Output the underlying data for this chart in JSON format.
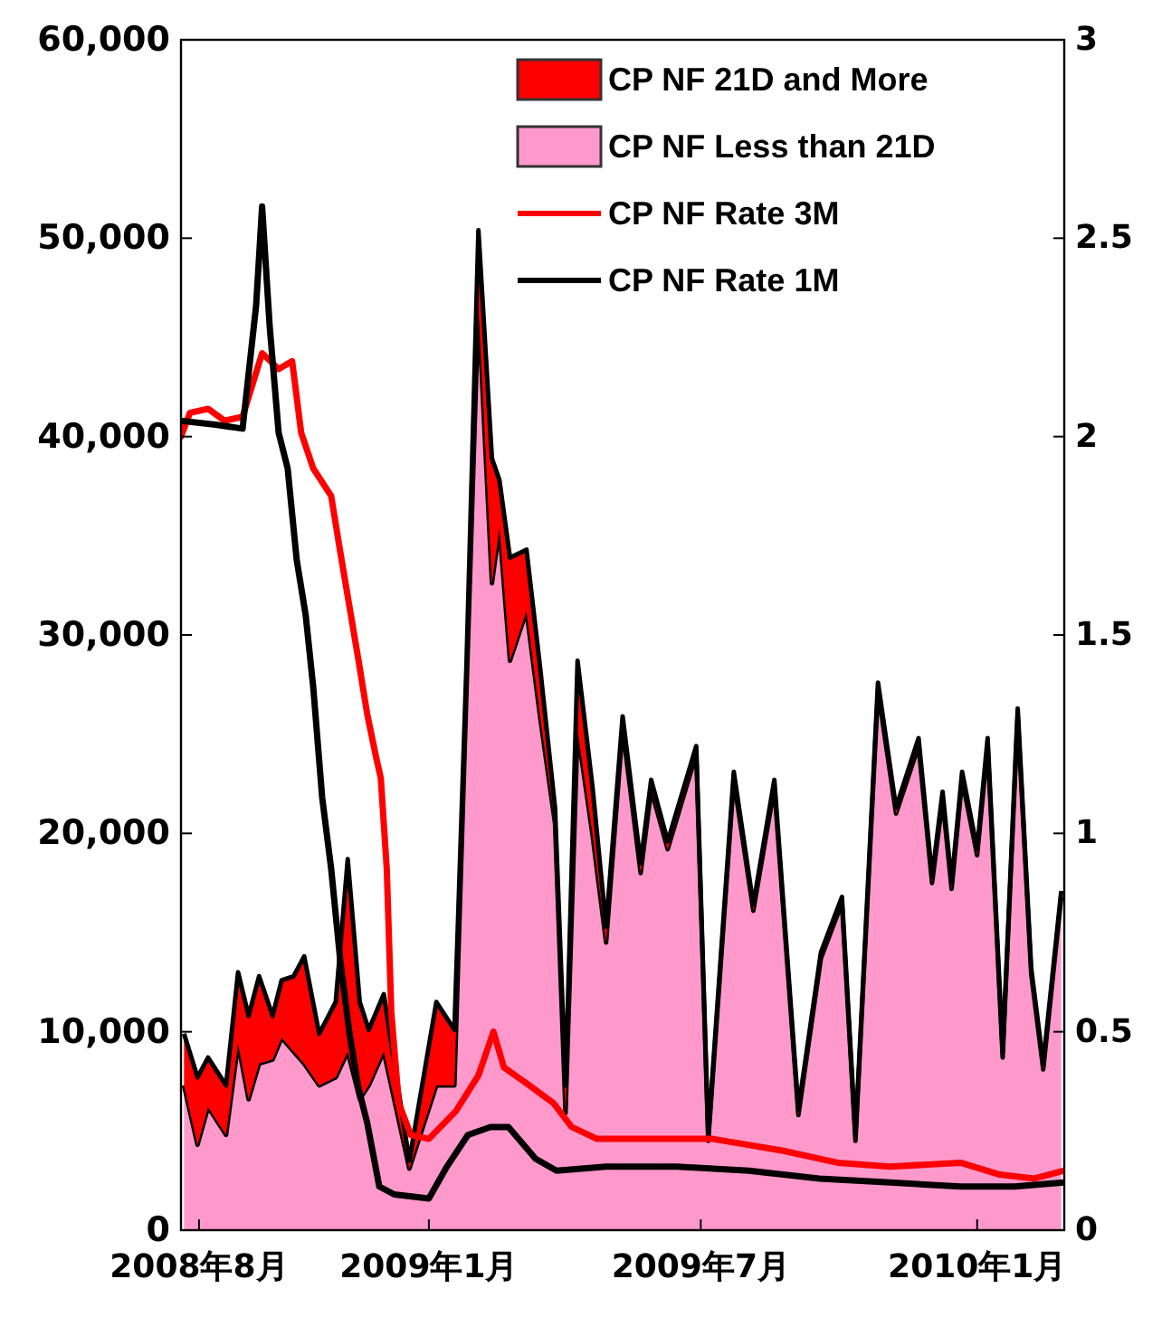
{
  "chart_data": {
    "type": "area",
    "stacked": true,
    "legend": "top right",
    "grid": false,
    "x": [
      "2008-07-22",
      "2008-07-31",
      "2008-08-07",
      "2008-08-19",
      "2008-08-27",
      "2008-09-03",
      "2008-09-10",
      "2008-09-19",
      "2008-09-25",
      "2008-10-03",
      "2008-10-10",
      "2008-10-20",
      "2008-10-31",
      "2008-11-08",
      "2008-11-16",
      "2008-11-22",
      "2008-12-02",
      "2008-12-19",
      "2009-01-06",
      "2009-01-18",
      "2009-01-26",
      "2009-02-03",
      "2009-02-12",
      "2009-02-17",
      "2009-02-24",
      "2009-03-07",
      "2009-03-16",
      "2009-03-26",
      "2009-04-02",
      "2009-04-10",
      "2009-04-20",
      "2009-04-29",
      "2009-05-10",
      "2009-05-22",
      "2009-05-29",
      "2009-06-09",
      "2009-06-28",
      "2009-07-06",
      "2009-07-23",
      "2009-08-05",
      "2009-08-19",
      "2009-09-04",
      "2009-09-19",
      "2009-10-03",
      "2009-10-12",
      "2009-10-27",
      "2009-11-08",
      "2009-11-23",
      "2009-12-02",
      "2009-12-09",
      "2009-12-15",
      "2009-12-22",
      "2010-01-01",
      "2010-01-08",
      "2010-01-18",
      "2010-01-28",
      "2010-02-06",
      "2010-02-14",
      "2010-02-26"
    ],
    "xlim": [
      "2008-07-20",
      "2010-02-28"
    ],
    "xticks": [
      {
        "value": "2008-08-01",
        "label": "2008年8月"
      },
      {
        "value": "2009-01-01",
        "label": "2009年1月"
      },
      {
        "value": "2009-07-01",
        "label": "2009年7月"
      },
      {
        "value": "2010-01-01",
        "label": "2010年1月"
      }
    ],
    "ylim": [
      0,
      60000
    ],
    "yticks": [
      0,
      {
        "value": 10000,
        "label": "10,000"
      },
      {
        "value": 20000,
        "label": "20,000"
      },
      {
        "value": 30000,
        "label": "30,000"
      },
      {
        "value": 40000,
        "label": "40,000"
      },
      {
        "value": 50000,
        "label": "50,000"
      },
      {
        "value": 60000,
        "label": "60,000"
      }
    ],
    "y2lim": [
      0,
      3
    ],
    "y2ticks": [
      0,
      0.5,
      1,
      1.5,
      2,
      2.5,
      3
    ],
    "series": [
      {
        "name": "CP NF Less than 21D",
        "color": "#ff99cc",
        "values": [
          7300,
          4300,
          6200,
          4800,
          9400,
          6600,
          8400,
          8600,
          9700,
          9000,
          8400,
          7300,
          7700,
          9000,
          6600,
          7300,
          9000,
          3100,
          7300,
          7300,
          27000,
          46600,
          32600,
          35400,
          28700,
          31200,
          25900,
          20500,
          5900,
          25200,
          19900,
          14500,
          25300,
          18000,
          22200,
          19200,
          24000,
          4500,
          22700,
          16100,
          22300,
          5800,
          13700,
          16500,
          4500,
          27200,
          21000,
          24400,
          17500,
          21700,
          17200,
          22700,
          18900,
          24400,
          8700,
          25900,
          12900,
          8100,
          16800
        ]
      },
      {
        "name": "CP NF 21D and More",
        "color": "#ff0000",
        "values": [
          2600,
          3400,
          2500,
          2500,
          3600,
          4200,
          4400,
          2200,
          2900,
          3800,
          5400,
          2600,
          3800,
          9700,
          4900,
          2800,
          2900,
          400,
          4200,
          2800,
          1400,
          3800,
          6300,
          2400,
          5200,
          3100,
          2500,
          800,
          1400,
          3500,
          2400,
          800,
          600,
          500,
          500,
          400,
          400,
          300,
          400,
          300,
          400,
          300,
          300,
          300,
          300,
          400,
          300,
          400,
          300,
          400,
          300,
          400,
          300,
          400,
          300,
          400,
          300,
          300,
          300
        ]
      },
      {
        "name": "CP NF Rate 3M",
        "type": "line",
        "axis": "y2",
        "color": "#ff0000",
        "x": [
          "2008-07-20",
          "2008-07-26",
          "2008-08-07",
          "2008-08-18",
          "2008-08-30",
          "2008-09-12",
          "2008-09-23",
          "2008-10-02",
          "2008-10-08",
          "2008-10-16",
          "2008-10-28",
          "2008-11-03",
          "2008-11-15",
          "2008-11-21",
          "2008-11-27",
          "2008-11-30",
          "2008-12-04",
          "2008-12-07",
          "2008-12-12",
          "2008-12-20",
          "2009-01-01",
          "2009-01-19",
          "2009-02-03",
          "2009-02-13",
          "2009-02-20",
          "2009-03-07",
          "2009-03-25",
          "2009-04-06",
          "2009-04-23",
          "2009-05-23",
          "2009-07-09",
          "2009-08-25",
          "2009-09-30",
          "2009-11-04",
          "2009-12-21",
          "2010-01-16",
          "2010-02-08",
          "2010-02-28"
        ],
        "values": [
          2.0,
          2.06,
          2.07,
          2.04,
          2.05,
          2.21,
          2.17,
          2.19,
          2.01,
          1.92,
          1.85,
          1.71,
          1.44,
          1.3,
          1.19,
          1.14,
          0.91,
          0.55,
          0.32,
          0.24,
          0.23,
          0.3,
          0.39,
          0.5,
          0.41,
          0.37,
          0.32,
          0.26,
          0.23,
          0.23,
          0.23,
          0.2,
          0.17,
          0.16,
          0.17,
          0.14,
          0.13,
          0.15
        ]
      },
      {
        "name": "CP NF Rate 1M",
        "type": "line",
        "axis": "y2",
        "color": "#000000",
        "x": [
          "2008-07-20",
          "2008-08-12",
          "2008-08-30",
          "2008-09-08",
          "2008-09-12",
          "2008-09-17",
          "2008-09-23",
          "2008-09-29",
          "2008-10-05",
          "2008-10-11",
          "2008-10-16",
          "2008-10-22",
          "2008-10-28",
          "2008-11-03",
          "2008-11-09",
          "2008-11-15",
          "2008-11-21",
          "2008-11-29",
          "2008-12-09",
          "2009-01-01",
          "2009-01-13",
          "2009-01-27",
          "2009-02-11",
          "2009-02-23",
          "2009-03-13",
          "2009-03-27",
          "2009-04-29",
          "2009-06-15",
          "2009-08-02",
          "2009-09-18",
          "2009-11-04",
          "2009-12-21",
          "2010-01-26",
          "2010-02-28"
        ],
        "values": [
          2.04,
          2.03,
          2.02,
          2.33,
          2.58,
          2.28,
          2.01,
          1.92,
          1.69,
          1.55,
          1.37,
          1.09,
          0.91,
          0.68,
          0.5,
          0.36,
          0.27,
          0.11,
          0.09,
          0.08,
          0.16,
          0.24,
          0.26,
          0.26,
          0.18,
          0.15,
          0.16,
          0.16,
          0.15,
          0.13,
          0.12,
          0.11,
          0.11,
          0.12
        ]
      }
    ]
  }
}
